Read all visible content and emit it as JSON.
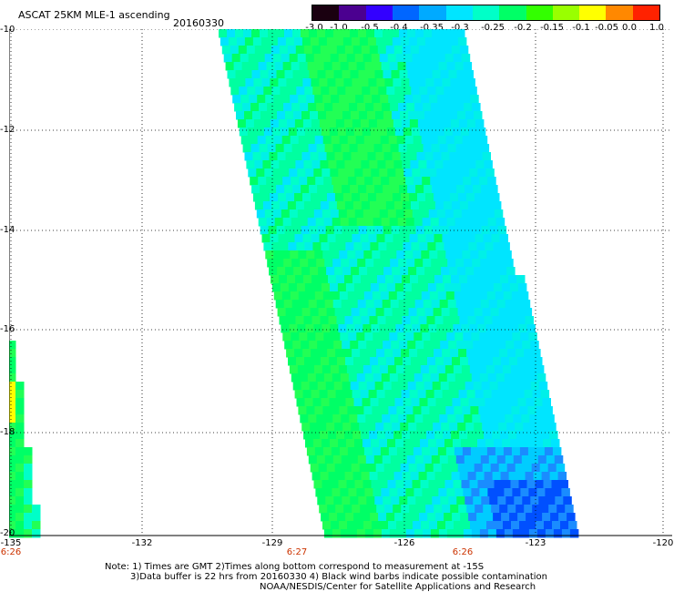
{
  "title": "ASCAT 25KM MLE-1 ascending",
  "date": "20160330",
  "colorbar": {
    "labels": [
      "-3.0",
      "-1.0",
      "-0.5",
      "-0.4",
      "-0.35",
      "-0.3",
      "-0.25",
      "-0.2",
      "-0.15",
      "-0.1",
      "-0.05",
      "0.0",
      "1.0"
    ],
    "colors": [
      "#1a0010",
      "#4b0090",
      "#3300ff",
      "#0066ff",
      "#00aaff",
      "#00e5ff",
      "#00ffc8",
      "#00ff66",
      "#33ff00",
      "#99ff00",
      "#ffff00",
      "#ff8800",
      "#ff2200"
    ]
  },
  "map": {
    "y_ticks": [
      "-10",
      "-12",
      "-14",
      "-16",
      "-18",
      "-20"
    ],
    "x_ticks": [
      "-135",
      "-132",
      "-129",
      "-126",
      "-123",
      "-120"
    ],
    "time_labels": [
      "6:26",
      "6:27",
      "6:26"
    ],
    "swath_colors": [
      "#00ff66",
      "#22ff55",
      "#00ffa0",
      "#00ffc8",
      "#00f0e8",
      "#00e5ff",
      "#00ccff",
      "#1a8cff",
      "#0050ff",
      "#ffff00"
    ]
  },
  "notes": [
    "Note: 1) Times are GMT 2)Times along bottom correspond to measurement at -15S",
    "3)Data buffer is 22 hrs from 20160330 4) Black wind barbs indicate possible contamination",
    "NOAA/NESDIS/Center for Satellite Applications and Research"
  ]
}
